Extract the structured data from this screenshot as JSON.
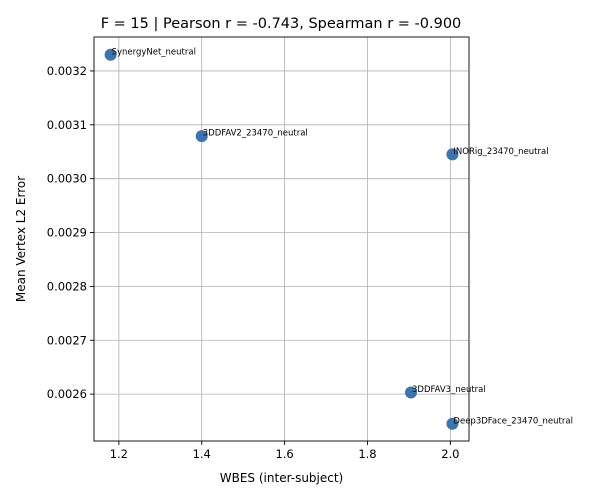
{
  "chart_data": {
    "type": "scatter",
    "title": "F = 15 | Pearson r = -0.743, Spearman r = -0.900",
    "xlabel": "WBES (inter-subject)",
    "ylabel": "Mean Vertex L2 Error",
    "xlim": [
      1.14,
      2.045
    ],
    "ylim": [
      0.002513,
      0.003263
    ],
    "xticks": [
      "1.2",
      "1.4",
      "1.6",
      "1.8",
      "2.0"
    ],
    "yticks": [
      "0.0026",
      "0.0027",
      "0.0028",
      "0.0029",
      "0.0030",
      "0.0031",
      "0.0032"
    ],
    "grid": true,
    "marker_color": "#3b75af",
    "points": [
      {
        "label": "SynergyNet_neutral",
        "x": 1.18,
        "y": 0.00323
      },
      {
        "label": "3DDFAV2_23470_neutral",
        "x": 1.4,
        "y": 0.003079
      },
      {
        "label": "INORig_23470_neutral",
        "x": 2.005,
        "y": 0.003045
      },
      {
        "label": "3DDFAV3_neutral",
        "x": 1.905,
        "y": 0.002603
      },
      {
        "label": "Deep3DFace_23470_neutral",
        "x": 2.005,
        "y": 0.002545
      }
    ]
  }
}
